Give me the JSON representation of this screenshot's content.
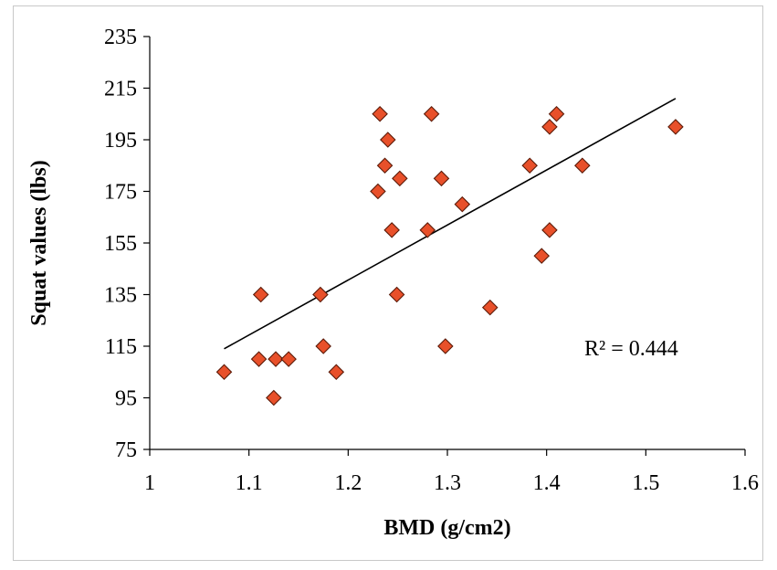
{
  "chart_data": {
    "type": "scatter",
    "title": "",
    "xlabel": "BMD (g/cm2)",
    "ylabel": "Squat values (lbs)",
    "xlim": [
      1,
      1.6
    ],
    "ylim": [
      75,
      235
    ],
    "xticks": [
      "1",
      "1.1",
      "1.2",
      "1.3",
      "1.4",
      "1.5",
      "1.6"
    ],
    "yticks": [
      "75",
      "95",
      "115",
      "135",
      "155",
      "175",
      "195",
      "215",
      "235"
    ],
    "grid": false,
    "legend": "none",
    "marker": "diamond",
    "marker_color": "#e8502a",
    "trendline": {
      "type": "linear",
      "x": [
        1.075,
        1.53
      ],
      "y": [
        114,
        211
      ],
      "color": "#000000"
    },
    "annotation": "R² = 0.444",
    "x": [
      1.075,
      1.11,
      1.112,
      1.125,
      1.127,
      1.14,
      1.172,
      1.175,
      1.188,
      1.23,
      1.232,
      1.237,
      1.24,
      1.244,
      1.249,
      1.252,
      1.28,
      1.284,
      1.294,
      1.298,
      1.315,
      1.343,
      1.383,
      1.395,
      1.403,
      1.403,
      1.41,
      1.436,
      1.53
    ],
    "y": [
      105,
      110,
      135,
      95,
      110,
      110,
      135,
      115,
      105,
      175,
      205,
      185,
      195,
      160,
      135,
      180,
      160,
      205,
      180,
      115,
      170,
      130,
      185,
      150,
      160,
      200,
      205,
      185,
      200
    ]
  }
}
